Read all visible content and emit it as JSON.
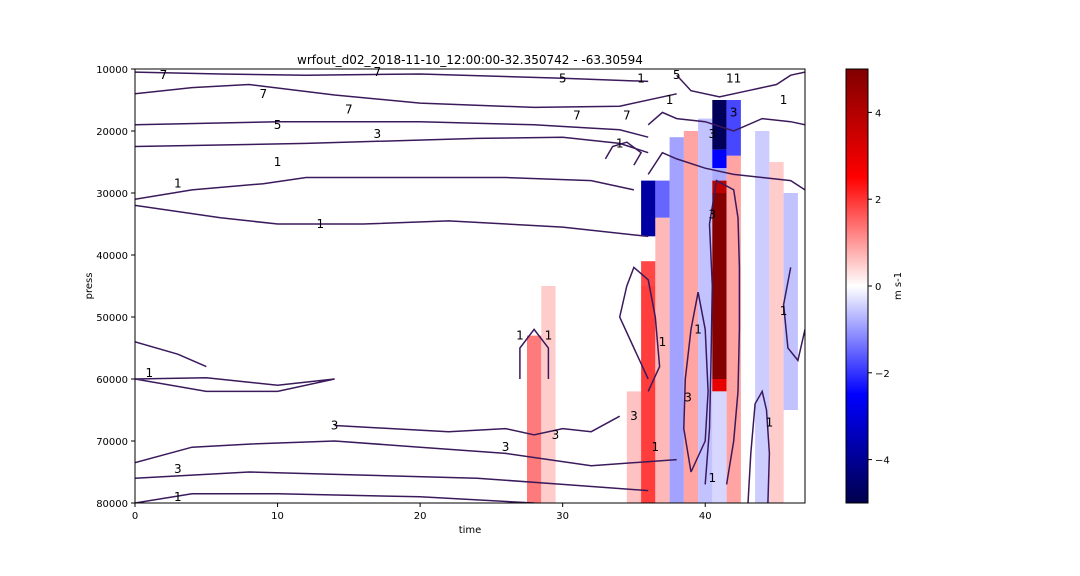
{
  "chart_data": {
    "type": "heatmap",
    "title": "wrfout_d02_2018-11-10_12:00:00-32.350742 - -63.30594",
    "xlabel": "time",
    "ylabel": "press",
    "colorbar_label": "m s-1",
    "colormap": "seismic",
    "colormap_stops": [
      "#00004c",
      "#0000ff",
      "#ffffff",
      "#ff0000",
      "#800000"
    ],
    "contour_color": "#3b1a5c",
    "xlim": [
      0,
      47
    ],
    "ylim": [
      80000,
      10000
    ],
    "y_inverted": true,
    "clim": [
      -5,
      5
    ],
    "x_ticks": [
      0,
      10,
      20,
      30,
      40
    ],
    "x_tick_labels": [
      "0",
      "10",
      "20",
      "30",
      "40"
    ],
    "y_ticks": [
      10000,
      20000,
      30000,
      40000,
      50000,
      60000,
      70000,
      80000
    ],
    "y_tick_labels": [
      "10000",
      "20000",
      "30000",
      "40000",
      "50000",
      "60000",
      "70000",
      "80000"
    ],
    "colorbar_ticks": [
      -4,
      -2,
      0,
      2,
      4
    ],
    "colorbar_tick_labels": [
      "−4",
      "−2",
      "0",
      "2",
      "4"
    ],
    "heatmap_cells": [
      {
        "x": 28,
        "p0": 53000,
        "p1": 80000,
        "v": 1.3
      },
      {
        "x": 29,
        "p0": 45000,
        "p1": 80000,
        "v": 0.5
      },
      {
        "x": 35,
        "p0": 62000,
        "p1": 80000,
        "v": 0.6
      },
      {
        "x": 36,
        "p0": 28000,
        "p1": 37000,
        "v": -3.8
      },
      {
        "x": 36,
        "p0": 37000,
        "p1": 41000,
        "v": 0.0
      },
      {
        "x": 36,
        "p0": 41000,
        "p1": 45000,
        "v": 1.8
      },
      {
        "x": 36,
        "p0": 45000,
        "p1": 80000,
        "v": 1.9
      },
      {
        "x": 37,
        "p0": 28000,
        "p1": 34000,
        "v": -1.5
      },
      {
        "x": 37,
        "p0": 34000,
        "p1": 80000,
        "v": 0.7
      },
      {
        "x": 38,
        "p0": 21000,
        "p1": 80000,
        "v": -0.9
      },
      {
        "x": 39,
        "p0": 20000,
        "p1": 80000,
        "v": 0.9
      },
      {
        "x": 40,
        "p0": 18000,
        "p1": 80000,
        "v": -0.6
      },
      {
        "x": 41,
        "p0": 15000,
        "p1": 23000,
        "v": -4.8
      },
      {
        "x": 41,
        "p0": 23000,
        "p1": 26000,
        "v": -2.5
      },
      {
        "x": 41,
        "p0": 26000,
        "p1": 28000,
        "v": -0.8
      },
      {
        "x": 41,
        "p0": 28000,
        "p1": 30000,
        "v": 3.8
      },
      {
        "x": 41,
        "p0": 30000,
        "p1": 60000,
        "v": 4.9
      },
      {
        "x": 41,
        "p0": 60000,
        "p1": 62000,
        "v": 3.0
      },
      {
        "x": 41,
        "p0": 62000,
        "p1": 80000,
        "v": -0.4
      },
      {
        "x": 42,
        "p0": 15000,
        "p1": 24000,
        "v": -1.8
      },
      {
        "x": 42,
        "p0": 24000,
        "p1": 80000,
        "v": 0.9
      },
      {
        "x": 44,
        "p0": 20000,
        "p1": 80000,
        "v": -0.5
      },
      {
        "x": 45,
        "p0": 25000,
        "p1": 80000,
        "v": 0.5
      },
      {
        "x": 46,
        "p0": 30000,
        "p1": 65000,
        "v": -0.6
      }
    ],
    "contours": [
      {
        "points": [
          [
            0,
            10500
          ],
          [
            6,
            10800
          ],
          [
            12,
            11000
          ],
          [
            20,
            10800
          ],
          [
            30,
            11500
          ],
          [
            36,
            12000
          ]
        ]
      },
      {
        "points": [
          [
            0,
            14000
          ],
          [
            4,
            13000
          ],
          [
            8,
            12500
          ],
          [
            14,
            14200
          ],
          [
            20,
            15500
          ],
          [
            28,
            16200
          ],
          [
            34,
            16000
          ],
          [
            38,
            14000
          ]
        ]
      },
      {
        "points": [
          [
            0,
            19000
          ],
          [
            10,
            18500
          ],
          [
            20,
            18500
          ],
          [
            28,
            19000
          ],
          [
            34,
            19800
          ],
          [
            36,
            21000
          ]
        ]
      },
      {
        "points": [
          [
            0,
            22500
          ],
          [
            12,
            22000
          ],
          [
            24,
            21200
          ],
          [
            30,
            21000
          ],
          [
            34,
            22000
          ],
          [
            36,
            23500
          ]
        ]
      },
      {
        "points": [
          [
            0,
            31000
          ],
          [
            4,
            29500
          ],
          [
            9,
            28500
          ],
          [
            12,
            27500
          ],
          [
            18,
            27500
          ],
          [
            26,
            27500
          ],
          [
            32,
            28000
          ],
          [
            35,
            29500
          ]
        ]
      },
      {
        "points": [
          [
            0,
            32000
          ],
          [
            6,
            34000
          ],
          [
            10,
            35000
          ],
          [
            16,
            35000
          ],
          [
            22,
            34500
          ],
          [
            30,
            35500
          ],
          [
            36,
            37000
          ]
        ]
      },
      {
        "points": [
          [
            0,
            54000
          ],
          [
            3,
            56000
          ],
          [
            5,
            58000
          ]
        ]
      },
      {
        "points": [
          [
            0,
            60000
          ],
          [
            5,
            59800
          ],
          [
            10,
            61000
          ],
          [
            14,
            60000
          ],
          [
            10,
            62000
          ],
          [
            5,
            62000
          ],
          [
            0,
            60000
          ]
        ]
      },
      {
        "points": [
          [
            14,
            67500
          ],
          [
            18,
            68000
          ],
          [
            22,
            68500
          ],
          [
            26,
            68000
          ],
          [
            28,
            69000
          ],
          [
            30,
            68000
          ],
          [
            32,
            68500
          ],
          [
            34,
            66000
          ]
        ]
      },
      {
        "points": [
          [
            0,
            73500
          ],
          [
            4,
            71000
          ],
          [
            8,
            70500
          ],
          [
            14,
            70000
          ],
          [
            20,
            71000
          ],
          [
            26,
            72000
          ],
          [
            32,
            74000
          ],
          [
            38,
            73000
          ]
        ]
      },
      {
        "points": [
          [
            0,
            76000
          ],
          [
            8,
            75000
          ],
          [
            16,
            75500
          ],
          [
            24,
            76000
          ],
          [
            30,
            77000
          ],
          [
            36,
            78000
          ]
        ]
      },
      {
        "points": [
          [
            0,
            80000
          ],
          [
            4,
            78500
          ],
          [
            10,
            78500
          ],
          [
            20,
            79000
          ],
          [
            28,
            80000
          ]
        ]
      },
      {
        "points": [
          [
            27,
            60000
          ],
          [
            27,
            55000
          ],
          [
            28,
            52000
          ],
          [
            29,
            55000
          ],
          [
            29,
            60000
          ]
        ]
      },
      {
        "points": [
          [
            36,
            60000
          ],
          [
            35,
            55000
          ],
          [
            34,
            50000
          ],
          [
            34.5,
            45000
          ],
          [
            35,
            42000
          ],
          [
            36,
            44000
          ],
          [
            36.5,
            50000
          ],
          [
            36.8,
            58000
          ],
          [
            36,
            62000
          ]
        ]
      },
      {
        "points": [
          [
            39,
            75000
          ],
          [
            38.5,
            68000
          ],
          [
            38.6,
            60000
          ],
          [
            39,
            52000
          ],
          [
            39.5,
            46000
          ],
          [
            40,
            52000
          ],
          [
            40.2,
            62000
          ],
          [
            40,
            70000
          ],
          [
            39,
            75000
          ]
        ]
      },
      {
        "points": [
          [
            40,
            77000
          ],
          [
            40.3,
            68000
          ],
          [
            40.4,
            58000
          ],
          [
            40.5,
            45000
          ],
          [
            40.3,
            35000
          ],
          [
            40.8,
            28000
          ],
          [
            42,
            29500
          ],
          [
            42.3,
            34000
          ],
          [
            42.4,
            42000
          ],
          [
            42.4,
            52000
          ],
          [
            42.3,
            62000
          ],
          [
            42,
            70000
          ],
          [
            41.5,
            77000
          ]
        ]
      },
      {
        "points": [
          [
            43,
            80000
          ],
          [
            43.2,
            72000
          ],
          [
            43.5,
            64000
          ],
          [
            44,
            62000
          ],
          [
            44.3,
            65000
          ],
          [
            44.5,
            72000
          ],
          [
            44.4,
            80000
          ]
        ]
      },
      {
        "points": [
          [
            46,
            42000
          ],
          [
            45.5,
            48000
          ],
          [
            45.8,
            55000
          ],
          [
            46.5,
            57000
          ],
          [
            47,
            52000
          ]
        ]
      },
      {
        "points": [
          [
            36,
            19000
          ],
          [
            37,
            17000
          ],
          [
            38,
            18000
          ],
          [
            40,
            18500
          ],
          [
            42,
            20000
          ],
          [
            44,
            18000
          ],
          [
            46,
            18500
          ],
          [
            47,
            19000
          ]
        ]
      },
      {
        "points": [
          [
            36,
            27000
          ],
          [
            37,
            23500
          ],
          [
            38,
            24500
          ],
          [
            40,
            26000
          ],
          [
            42,
            27000
          ],
          [
            44,
            27500
          ],
          [
            46,
            28000
          ],
          [
            47,
            29500
          ]
        ]
      },
      {
        "points": [
          [
            38,
            11000
          ],
          [
            39,
            13500
          ],
          [
            41,
            14500
          ],
          [
            43,
            13500
          ],
          [
            45,
            12500
          ],
          [
            46,
            11000
          ],
          [
            47,
            10500
          ]
        ]
      },
      {
        "points": [
          [
            33,
            24500
          ],
          [
            33.5,
            22500
          ],
          [
            34.5,
            21800
          ],
          [
            35.5,
            23500
          ],
          [
            35,
            25500
          ]
        ]
      }
    ],
    "contour_labels": [
      {
        "x": 2,
        "y": 11000,
        "text": "7"
      },
      {
        "x": 17,
        "y": 10500,
        "text": "7"
      },
      {
        "x": 30,
        "y": 11500,
        "text": "5"
      },
      {
        "x": 35.5,
        "y": 11500,
        "text": "1"
      },
      {
        "x": 38,
        "y": 11000,
        "text": "5"
      },
      {
        "x": 42,
        "y": 11500,
        "text": "11"
      },
      {
        "x": 9,
        "y": 14000,
        "text": "7"
      },
      {
        "x": 15,
        "y": 16500,
        "text": "7"
      },
      {
        "x": 31,
        "y": 17500,
        "text": "7"
      },
      {
        "x": 34.5,
        "y": 17500,
        "text": "7"
      },
      {
        "x": 10,
        "y": 19000,
        "text": "5"
      },
      {
        "x": 17,
        "y": 20500,
        "text": "3"
      },
      {
        "x": 40.5,
        "y": 20500,
        "text": "3"
      },
      {
        "x": 3,
        "y": 28500,
        "text": "1"
      },
      {
        "x": 13,
        "y": 35000,
        "text": "1"
      },
      {
        "x": 1,
        "y": 59000,
        "text": "1"
      },
      {
        "x": 14,
        "y": 67500,
        "text": "3"
      },
      {
        "x": 29.5,
        "y": 69000,
        "text": "3"
      },
      {
        "x": 35,
        "y": 66000,
        "text": "3"
      },
      {
        "x": 26,
        "y": 71000,
        "text": "3"
      },
      {
        "x": 3,
        "y": 74500,
        "text": "3"
      },
      {
        "x": 3,
        "y": 79000,
        "text": "1"
      },
      {
        "x": 27,
        "y": 53000,
        "text": "1"
      },
      {
        "x": 29,
        "y": 53000,
        "text": "1"
      },
      {
        "x": 37,
        "y": 54000,
        "text": "1"
      },
      {
        "x": 39.5,
        "y": 52000,
        "text": "1"
      },
      {
        "x": 38.8,
        "y": 63000,
        "text": "3"
      },
      {
        "x": 40.5,
        "y": 76000,
        "text": "1"
      },
      {
        "x": 36.5,
        "y": 71000,
        "text": "1"
      },
      {
        "x": 44.5,
        "y": 67000,
        "text": "1"
      },
      {
        "x": 45.5,
        "y": 49000,
        "text": "1"
      },
      {
        "x": 45.5,
        "y": 15000,
        "text": "1"
      },
      {
        "x": 37.5,
        "y": 15000,
        "text": "1"
      },
      {
        "x": 34,
        "y": 22000,
        "text": "1"
      },
      {
        "x": 10,
        "y": 25000,
        "text": "1"
      },
      {
        "x": 42,
        "y": 17000,
        "text": "3"
      },
      {
        "x": 40.5,
        "y": 33500,
        "text": "3"
      }
    ]
  }
}
